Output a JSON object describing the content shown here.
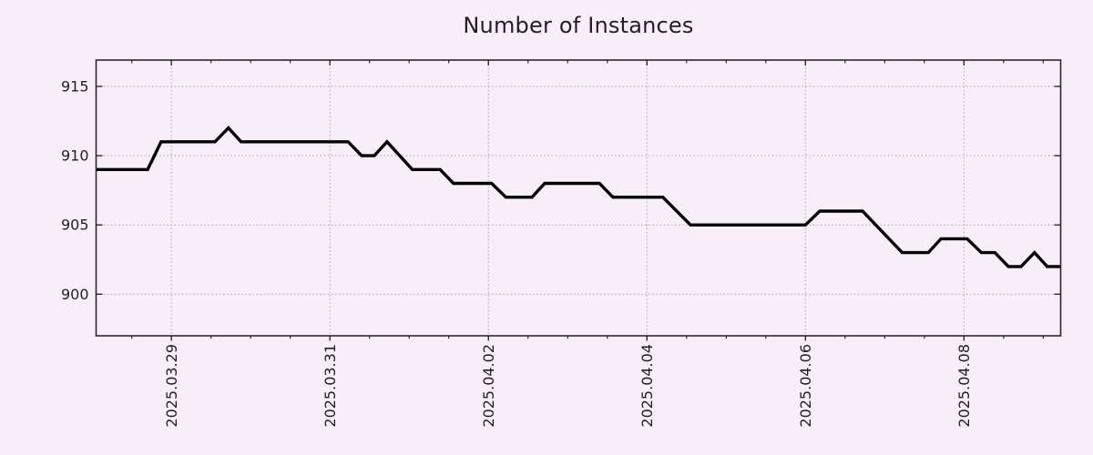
{
  "page": {
    "background_color": "#f8eef8"
  },
  "chart_data": {
    "type": "line",
    "title": "Number of Instances",
    "xlabel": "",
    "ylabel": "",
    "x_unit": "days since 2025-03-29 00:00",
    "xlim": [
      -0.95,
      11.22
    ],
    "ylim": [
      897.0,
      916.9
    ],
    "yticks": [
      900,
      905,
      910,
      915
    ],
    "xticks": [
      {
        "t": 0,
        "label": "2025.03.29"
      },
      {
        "t": 2,
        "label": "2025.03.31"
      },
      {
        "t": 4,
        "label": "2025.04.02"
      },
      {
        "t": 6,
        "label": "2025.04.04"
      },
      {
        "t": 8,
        "label": "2025.04.06"
      },
      {
        "t": 10,
        "label": "2025.04.08"
      }
    ],
    "x_minor_step": 0.5,
    "grid": true,
    "legend": "none",
    "colors": {
      "line": "#000000",
      "axis": "#2e2633",
      "grid": "#a9a1a9",
      "text": "#231d28"
    },
    "series": [
      {
        "name": "instances",
        "points": [
          [
            -0.95,
            909
          ],
          [
            -0.3,
            909
          ],
          [
            -0.13,
            911
          ],
          [
            0.55,
            911
          ],
          [
            0.72,
            912
          ],
          [
            0.88,
            911
          ],
          [
            2.23,
            911
          ],
          [
            2.4,
            910
          ],
          [
            2.56,
            910
          ],
          [
            2.72,
            911
          ],
          [
            3.04,
            909
          ],
          [
            3.39,
            909
          ],
          [
            3.56,
            908
          ],
          [
            4.04,
            908
          ],
          [
            4.22,
            907
          ],
          [
            4.55,
            907
          ],
          [
            4.71,
            908
          ],
          [
            5.4,
            908
          ],
          [
            5.57,
            907
          ],
          [
            6.2,
            907
          ],
          [
            6.55,
            905
          ],
          [
            8.0,
            905
          ],
          [
            8.18,
            906
          ],
          [
            8.72,
            906
          ],
          [
            9.22,
            903
          ],
          [
            9.55,
            903
          ],
          [
            9.71,
            904
          ],
          [
            10.04,
            904
          ],
          [
            10.22,
            903
          ],
          [
            10.39,
            903
          ],
          [
            10.56,
            902
          ],
          [
            10.72,
            902
          ],
          [
            10.89,
            903
          ],
          [
            11.05,
            902
          ],
          [
            11.22,
            902
          ]
        ]
      }
    ]
  }
}
